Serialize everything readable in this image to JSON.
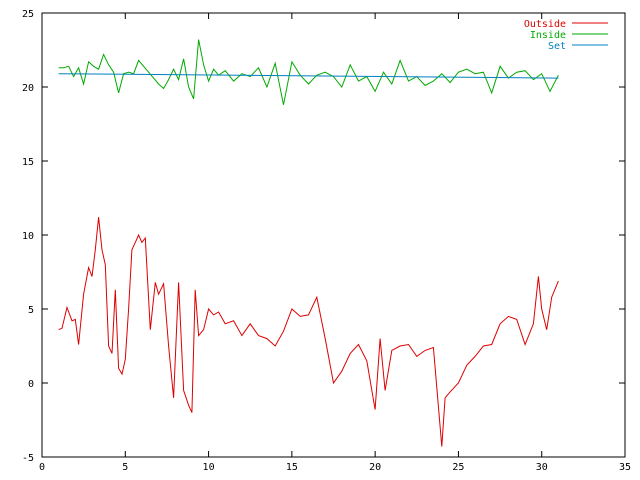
{
  "chart_data": {
    "type": "line",
    "title": "",
    "xlabel": "",
    "ylabel": "",
    "xlim": [
      0,
      35
    ],
    "ylim": [
      -5,
      25
    ],
    "xticks": [
      0,
      5,
      10,
      15,
      20,
      25,
      30,
      35
    ],
    "yticks": [
      -5,
      0,
      5,
      10,
      15,
      20,
      25
    ],
    "xtick_labels": [
      "0",
      "5",
      "10",
      "15",
      "20",
      "25",
      "30",
      "35"
    ],
    "ytick_labels": [
      "-5",
      "0",
      "5",
      "10",
      "15",
      "20",
      "25"
    ],
    "grid": false,
    "legend_position": "top-right",
    "series": [
      {
        "name": "Outside",
        "color": "#dd0000",
        "x": [
          1.0,
          1.2,
          1.5,
          1.8,
          2.0,
          2.2,
          2.5,
          2.8,
          3.0,
          3.2,
          3.4,
          3.6,
          3.8,
          4.0,
          4.2,
          4.4,
          4.6,
          4.8,
          5.0,
          5.2,
          5.4,
          5.6,
          5.8,
          6.0,
          6.2,
          6.5,
          6.8,
          7.0,
          7.3,
          7.6,
          7.9,
          8.2,
          8.5,
          8.8,
          9.0,
          9.2,
          9.4,
          9.7,
          10.0,
          10.3,
          10.6,
          11.0,
          11.5,
          12.0,
          12.5,
          13.0,
          13.5,
          14.0,
          14.5,
          15.0,
          15.5,
          16.0,
          16.5,
          17.0,
          17.5,
          18.0,
          18.5,
          19.0,
          19.5,
          20.0,
          20.3,
          20.6,
          21.0,
          21.5,
          22.0,
          22.5,
          23.0,
          23.5,
          24.0,
          24.2,
          24.5,
          25.0,
          25.5,
          26.0,
          26.5,
          27.0,
          27.5,
          28.0,
          28.5,
          29.0,
          29.5,
          29.8,
          30.0,
          30.3,
          30.6,
          31.0
        ],
        "values": [
          3.6,
          3.7,
          5.1,
          4.2,
          4.3,
          2.6,
          6.0,
          7.8,
          7.2,
          9.0,
          11.2,
          9.0,
          8.0,
          2.5,
          2.0,
          6.3,
          1.0,
          0.6,
          1.6,
          5.0,
          9.0,
          9.5,
          10.0,
          9.5,
          9.8,
          3.6,
          6.8,
          6.0,
          6.7,
          2.5,
          -1.0,
          6.8,
          -0.5,
          -1.5,
          -2.0,
          6.3,
          3.2,
          3.6,
          5.0,
          4.6,
          4.8,
          4.0,
          4.2,
          3.2,
          4.0,
          3.2,
          3.0,
          2.5,
          3.5,
          5.0,
          4.5,
          4.6,
          5.8,
          3.0,
          0.0,
          0.8,
          2.0,
          2.6,
          1.5,
          -1.8,
          3.0,
          -0.5,
          2.2,
          2.5,
          2.6,
          1.8,
          2.2,
          2.4,
          -4.3,
          -1.0,
          -0.6,
          0.0,
          1.2,
          1.8,
          2.5,
          2.6,
          4.0,
          4.5,
          4.3,
          2.6,
          4.0,
          7.2,
          5.0,
          3.6,
          5.8,
          6.9
        ]
      },
      {
        "name": "Inside",
        "color": "#00aa00",
        "x": [
          1.0,
          1.3,
          1.6,
          1.9,
          2.2,
          2.5,
          2.8,
          3.1,
          3.4,
          3.7,
          4.0,
          4.3,
          4.6,
          4.9,
          5.2,
          5.5,
          5.8,
          6.1,
          6.4,
          6.7,
          7.0,
          7.3,
          7.6,
          7.9,
          8.2,
          8.5,
          8.8,
          9.1,
          9.4,
          9.7,
          10.0,
          10.3,
          10.6,
          11.0,
          11.5,
          12.0,
          12.5,
          13.0,
          13.5,
          14.0,
          14.5,
          15.0,
          15.5,
          16.0,
          16.5,
          17.0,
          17.5,
          18.0,
          18.5,
          19.0,
          19.5,
          20.0,
          20.5,
          21.0,
          21.5,
          22.0,
          22.5,
          23.0,
          23.5,
          24.0,
          24.5,
          25.0,
          25.5,
          26.0,
          26.5,
          27.0,
          27.5,
          28.0,
          28.5,
          29.0,
          29.5,
          30.0,
          30.5,
          31.0
        ],
        "values": [
          21.3,
          21.3,
          21.4,
          20.7,
          21.3,
          20.2,
          21.7,
          21.4,
          21.2,
          22.2,
          21.5,
          21.0,
          19.6,
          20.9,
          21.0,
          20.9,
          21.8,
          21.4,
          21.0,
          20.6,
          20.2,
          19.9,
          20.5,
          21.2,
          20.5,
          21.9,
          20.0,
          19.2,
          23.2,
          21.5,
          20.4,
          21.2,
          20.8,
          21.1,
          20.4,
          20.9,
          20.7,
          21.3,
          20.0,
          21.6,
          18.8,
          21.7,
          20.8,
          20.2,
          20.8,
          21.0,
          20.7,
          20.0,
          21.5,
          20.4,
          20.7,
          19.7,
          21.0,
          20.2,
          21.8,
          20.4,
          20.7,
          20.1,
          20.4,
          20.9,
          20.3,
          21.0,
          21.2,
          20.9,
          21.0,
          19.6,
          21.4,
          20.6,
          21.0,
          21.1,
          20.5,
          20.9,
          19.7,
          20.8
        ]
      },
      {
        "name": "Set",
        "color": "#0080c0",
        "x": [
          1.0,
          31.0
        ],
        "values": [
          20.9,
          20.6
        ]
      }
    ]
  }
}
